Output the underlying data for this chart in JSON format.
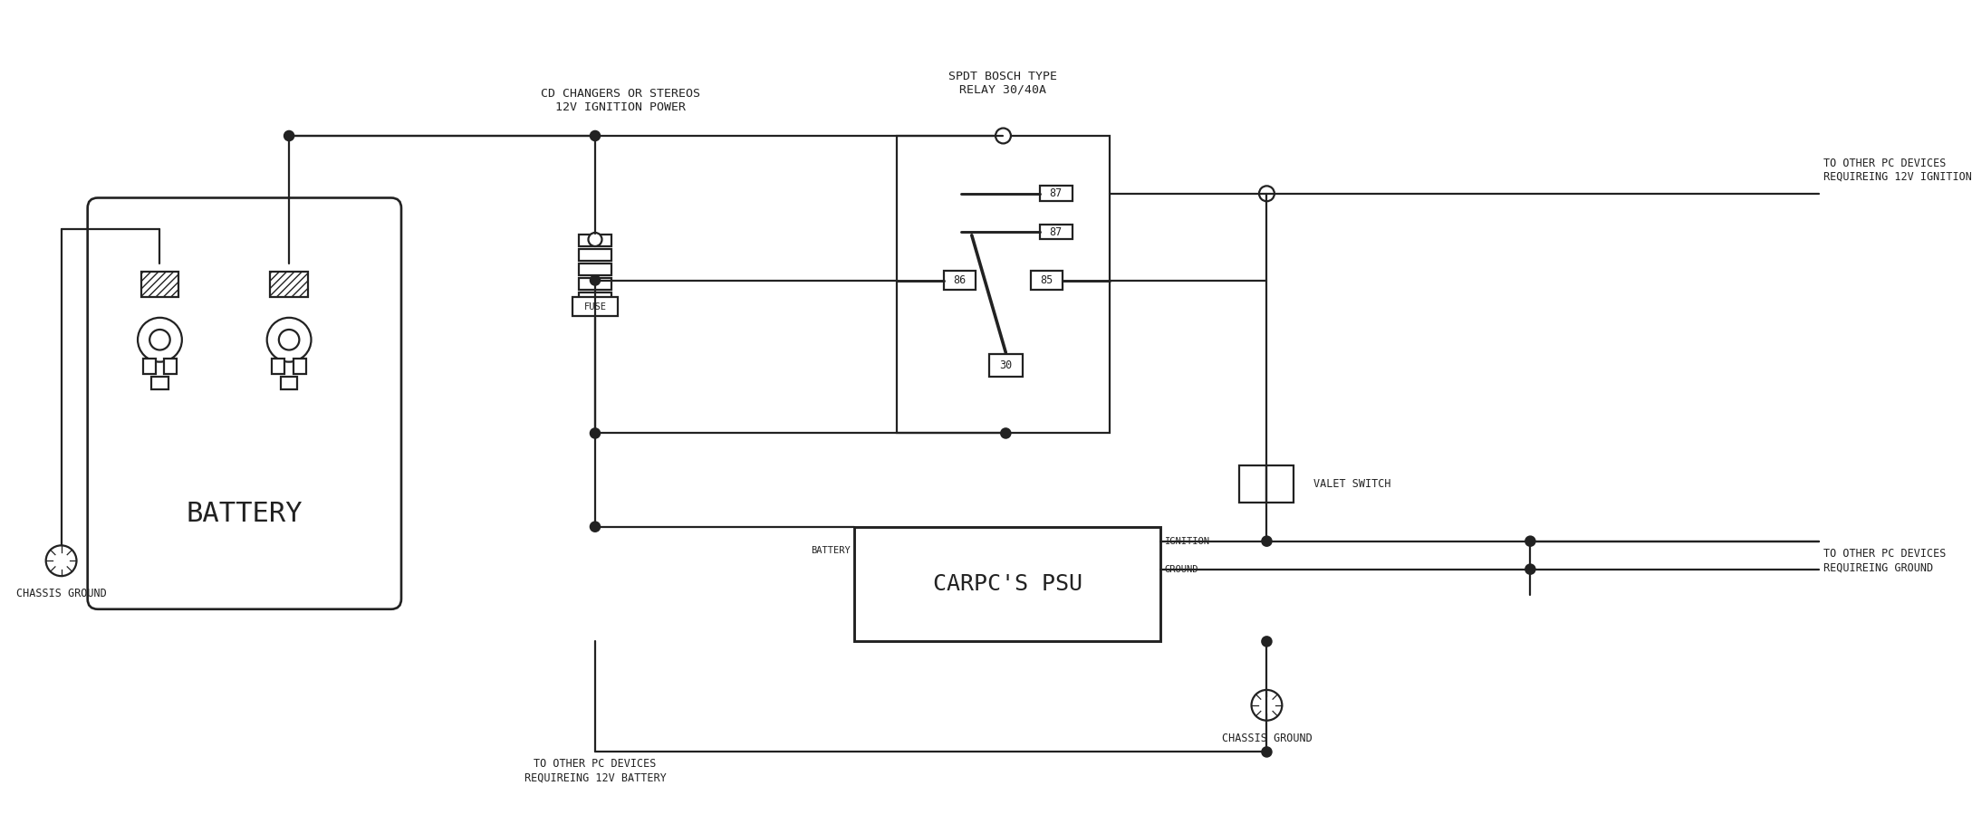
{
  "bg_color": "#ffffff",
  "line_color": "#222222",
  "lw": 1.6,
  "labels": {
    "cd_changers": "CD CHANGERS OR STEREOS\n12V IGNITION POWER",
    "spdt": "SPDT BOSCH TYPE\nRELAY 30/40A",
    "to_ignition": "TO OTHER PC DEVICES\nREQUIREING 12V IGNITION",
    "to_ground": "TO OTHER PC DEVICES\nREQUIREING GROUND",
    "to_battery": "TO OTHER PC DEVICES\nREQUIREING 12V BATTERY",
    "chassis_ground": "CHASSIS GROUND",
    "battery": "BATTERY",
    "carpc": "CARPC'S PSU",
    "valet": "VALET SWITCH",
    "fuse": "FUSE",
    "battery_in": "BATTERY",
    "ignition_in": "IGNITION",
    "ground_in": "GROUND",
    "r87a": "87",
    "r87b": "87",
    "r86": "86",
    "r85": "85",
    "r30": "30"
  }
}
